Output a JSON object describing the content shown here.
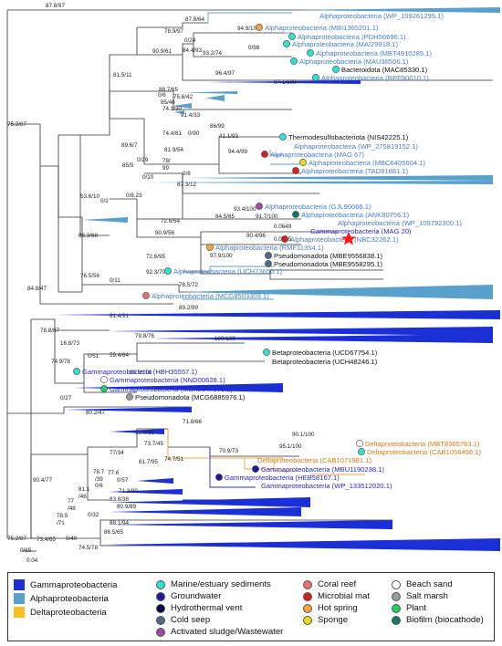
{
  "colors": {
    "gamma": "#1a2fd6",
    "alpha": "#5aa0cc",
    "delta": "#f5a53a",
    "alpha_text": "#4a7fc9",
    "gamma_text": "#2a2ad0",
    "delta_text": "#e07a12",
    "line": "#333333",
    "star": "#ff1a1a"
  },
  "scale_bar": {
    "label": "0.04"
  },
  "support_values": {
    "s1": "87.8/97",
    "s2": "87.8/64",
    "s3": "78.9/97",
    "s4": "0/24",
    "s5": "84.4/93",
    "s6": "94.9/100",
    "s7": "93.2/74",
    "s8": "0/98",
    "s9": "90.9/61",
    "s10": "96.4/97",
    "s11": "97.1/100",
    "s12": "81.5/11",
    "s13": "88.7/65",
    "s14": "75.6/42",
    "s15": "85/46",
    "s16": "0/6",
    "s17": "74.1/30",
    "s18": "91.4/33",
    "s19": "86/99",
    "s20": "0/90",
    "s21": "41.1/93",
    "s22": "74.4/81",
    "s23": "81.9/54",
    "s24": "94.4/99",
    "s25": "78/",
    "s26": "99",
    "s27": "0/29",
    "s28": "0/8",
    "s29": "89.6/7",
    "s30": "0/10",
    "s31": "87.3/12",
    "s32": "85/5",
    "s33": "0/8.23",
    "s34": "53.6/10",
    "s35": "0/2",
    "s36": "93.4/100",
    "s37": "84.5/65",
    "s38": "91.7/100",
    "s39": "72.6/54",
    "s40": "0.0649",
    "s41": "90.9/56",
    "s42": "90.4/96",
    "s43": "0.0385",
    "s44": "86.3/68",
    "s45": "72.6/95",
    "s46": "97.9/100",
    "s47": "92.3/70",
    "s48": "76.5/56",
    "s49": "0/11",
    "s50": "78.5/72",
    "s51": "84.8/47",
    "s52": "89.2/99",
    "s53": "75.2/87",
    "s54": "81.4/91",
    "s55": "78.8/67",
    "s56": "79.8/76",
    "s57": "100/100",
    "s58": "16.8/73",
    "s59": "59.4/64",
    "s60": "0/51",
    "s61": "74.9/78",
    "s62": "93.9/100",
    "s63": "0/27",
    "s64": "80.2/47",
    "s65": "71.8/66",
    "s66": "90.1/100",
    "s67": "95.1/100",
    "s68": "53.8/29",
    "s69": "70.9/73",
    "s70": "73.7/45",
    "s71": "77/34",
    "s72": "74.7/51",
    "s73": "81.7/95",
    "s74": "77.6",
    "s75": "0/57",
    "s76": "78.7",
    "s77": "/39",
    "s78": "0/6",
    "s79": "71.3/90",
    "s80": "81.1",
    "s81": "/46",
    "s82": "83.8/38",
    "s83": "77",
    "s84": "/48",
    "s85": "80.9/89",
    "s86": "90.4/77",
    "s87": "78.5",
    "s88": "/71",
    "s89": "0/32",
    "s90": "88.1/94",
    "s91": "86.5/65",
    "s92": "73.4/65",
    "s93": "0/40",
    "s94": "74.5/78",
    "s95": "75.2/87",
    "s96": "0/65"
  },
  "tips": [
    {
      "id": "t1",
      "label": "Alphaproteobacteria (WP_109261295.1)",
      "group": "alpha",
      "dot": ""
    },
    {
      "id": "t2",
      "label": "Alphaproteobacteria (MBI1365201.1)",
      "group": "alpha",
      "dot": "#f5a53a"
    },
    {
      "id": "t3",
      "label": "Alphaproteobacteria (PDH56696.1)",
      "group": "alpha",
      "dot": "#2fe0d4"
    },
    {
      "id": "t4",
      "label": "Alphaproteobacteria (MAI29918.1)",
      "group": "alpha",
      "dot": "#2fe0d4"
    },
    {
      "id": "t5",
      "label": "Alphaproteobacteria (MBT4910285.1)",
      "group": "alpha",
      "dot": "#2fe0d4"
    },
    {
      "id": "t6",
      "label": "Alphaproteobacteria (MAU38506.1)",
      "group": "alpha",
      "dot": "#2fe0d4"
    },
    {
      "id": "t7",
      "label": "Bacteroidota (MAC85330.1)",
      "group": "black",
      "dot": "#2fe0d4"
    },
    {
      "id": "t8",
      "label": "Alphaproteobacteria (RPF90010.1)",
      "group": "alpha",
      "dot": "#2fe0d4"
    },
    {
      "id": "t9",
      "label": "Thermodesulfobacteriota (NIS42225.1)",
      "group": "black",
      "dot": "#2fe0d4"
    },
    {
      "id": "t10",
      "label": "Alphaproteobacteria (WP_275819152.1)",
      "group": "alpha",
      "dot": ""
    },
    {
      "id": "t11",
      "label": "Alphaproteobacteria (MAG 67)",
      "group": "alpha",
      "dot": "#d42020"
    },
    {
      "id": "t12",
      "label": "Alphaproteobacteria (MBC6405604.1)",
      "group": "alpha",
      "dot": "#e8d820"
    },
    {
      "id": "t13",
      "label": "Alphaproteobacteria (TAD91881.1)",
      "group": "alpha",
      "dot": "#d42020"
    },
    {
      "id": "t14",
      "label": "Alphaproteobacteria (GJL90066.1)",
      "group": "alpha",
      "dot": "#9a4aa0"
    },
    {
      "id": "t15",
      "label": "Alphaproteobacteria (ANK80756.1)",
      "group": "alpha",
      "dot": "#137a6a"
    },
    {
      "id": "t16",
      "label": "Alphaproteobacteria (WP_109792300.1)",
      "group": "alpha",
      "dot": ""
    },
    {
      "id": "t17",
      "label": "Gammaproteobacteria (MAG 20)",
      "group": "gamma",
      "dot": ""
    },
    {
      "id": "t18",
      "label": "Alphaproteobacteria (NBC32262.1)",
      "group": "alpha",
      "dot": "#d42020"
    },
    {
      "id": "t19",
      "label": "Alphaproteobacteria (RMF11354.1)",
      "group": "alpha",
      "dot": "#f5a53a"
    },
    {
      "id": "t20",
      "label": "Pseudomonadota (MBE9556838.1)",
      "group": "black",
      "dot": "#4f6a85"
    },
    {
      "id": "t21",
      "label": "Pseudomonadota (MBE9558295.1)",
      "group": "black",
      "dot": "#4f6a85"
    },
    {
      "id": "t22",
      "label": "Alphaproteobacteria (UCH73650.1)",
      "group": "alpha",
      "dot": "#2fe0d4"
    },
    {
      "id": "t23",
      "label": "Alphaproteobacteria (MCG8503303.1)",
      "group": "alpha",
      "dot": "#e87070"
    },
    {
      "id": "t24",
      "label": "Betaproteobacteria (UCD67754.1)",
      "group": "black",
      "dot": "#2fe0d4"
    },
    {
      "id": "t25",
      "label": "Betaproteobacteria (UCH48246.1)",
      "group": "black",
      "dot": ""
    },
    {
      "id": "t26",
      "label": "Gammaproteobacteria (HBH35557.1)",
      "group": "gamma",
      "dot": "#2fe0d4"
    },
    {
      "id": "t27",
      "label": "Gammaproteobacteria (NND00628.1)",
      "group": "gamma",
      "dot": "#ffffff"
    },
    {
      "id": "t28",
      "label": "Gammaproteobacteria (MBX2847970.1)",
      "group": "gamma",
      "dot": "#1fd060"
    },
    {
      "id": "t29",
      "label": "Pseudomonadota (MCG6885976.1)",
      "group": "black",
      "dot": "#9a9a9a"
    },
    {
      "id": "t30",
      "label": "Deltaproteobacteria (MBT8365763.1)",
      "group": "delta",
      "dot": "#ffffff"
    },
    {
      "id": "t31",
      "label": "Deltaproteobacteria (CAB1056498.1)",
      "group": "delta",
      "dot": "#2fe0d4"
    },
    {
      "id": "t32",
      "label": "Deltaproteobacteria (CAB1071981.1)",
      "group": "delta",
      "dot": ""
    },
    {
      "id": "t33",
      "label": "Gammaproteobacteria (MBU1190238.1)",
      "group": "gamma",
      "dot": "#1a1aa0"
    },
    {
      "id": "t34",
      "label": "Gammaproteobacteria (HEB58167.1)",
      "group": "gamma",
      "dot": "#1a1aa0"
    },
    {
      "id": "t35",
      "label": "Gammaproteobacteria (WP_133512020.1)",
      "group": "gamma",
      "dot": ""
    }
  ],
  "legend": {
    "gamma": "Gammaproteobacteria",
    "alpha": "Alphaproteobacteria",
    "delta": "Deltaproteobacteria",
    "marine": "Marine/estuary sediments",
    "groundwater": "Groundwater",
    "hydrothermal": "Hydrothermal vent",
    "coldseep": "Cold seep",
    "sludge": "Activated sludge/Wastewater",
    "coral": "Coral reef",
    "microbial": "Microbial mat",
    "hotspring": "Hot spring",
    "sponge": "Sponge",
    "beach": "Beach sand",
    "saltmarsh": "Salt marsh",
    "plant": "Plant",
    "biofilm": "Biofilm (biocathode)"
  },
  "legend_colors": {
    "marine": "#2fe0d4",
    "groundwater": "#1a1aa0",
    "hydrothermal": "#07074a",
    "coldseep": "#4f6a85",
    "sludge": "#9a4aa0",
    "coral": "#e87070",
    "microbial": "#d42020",
    "hotspring": "#f5a53a",
    "sponge": "#e8d820",
    "beach": "#ffffff",
    "saltmarsh": "#9a9a9a",
    "plant": "#1fd060",
    "biofilm": "#137a6a"
  }
}
